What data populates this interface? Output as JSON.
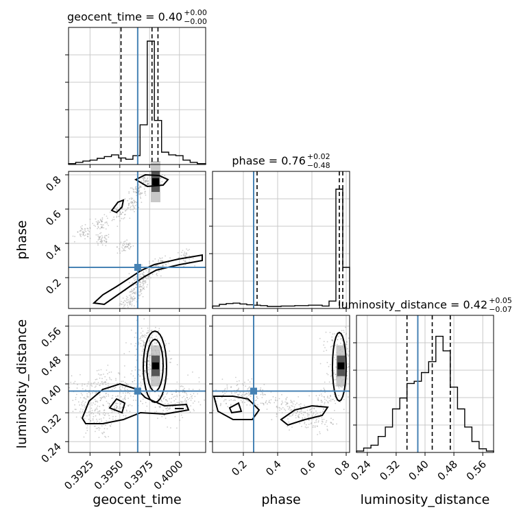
{
  "chart_data": {
    "type": "corner",
    "parameters": [
      "geocent_time",
      "phase",
      "luminosity_distance"
    ],
    "truths": {
      "geocent_time": 0.3965,
      "phase": 0.26,
      "luminosity_distance": 0.38
    },
    "colors": {
      "truth": "#4682b4",
      "grid": "#c8c8c8",
      "contour": "#000000",
      "points": "#9a9a9a",
      "density": "#555555"
    },
    "titles": [
      {
        "param": "geocent_time",
        "label": "geocent_time = 0.40",
        "sup": "+0.00",
        "sub": "−0.00"
      },
      {
        "param": "phase",
        "label": "phase = 0.76",
        "sup": "+0.02",
        "sub": "−0.48"
      },
      {
        "param": "luminosity_distance",
        "label": "luminosity_distance = 0.42",
        "sup": "+0.05",
        "sub": "−0.07"
      }
    ],
    "axes": {
      "geocent_time": {
        "range": [
          0.3907,
          0.4022
        ],
        "ticks": [
          0.3925,
          0.395,
          0.3975,
          0.4
        ],
        "tick_labels": [
          "0.3925",
          "0.3950",
          "0.3975",
          "0.4000"
        ]
      },
      "phase": {
        "range": [
          0.02,
          0.82
        ],
        "ticks": [
          0.2,
          0.4,
          0.6,
          0.8
        ],
        "tick_labels": [
          "0.2",
          "0.4",
          "0.6",
          "0.8"
        ]
      },
      "luminosity_distance": {
        "range": [
          0.21,
          0.59
        ],
        "ticks": [
          0.24,
          0.32,
          0.4,
          0.48,
          0.56
        ],
        "tick_labels": [
          "0.24",
          "0.32",
          "0.40",
          "0.48",
          "0.56"
        ]
      }
    },
    "histograms": {
      "geocent_time": {
        "edges": [
          0.3907,
          0.3913,
          0.3919,
          0.3925,
          0.3931,
          0.3937,
          0.3943,
          0.3949,
          0.3955,
          0.3961,
          0.3967,
          0.3973,
          0.3979,
          0.3985,
          0.3991,
          0.3997,
          0.4003,
          0.4009,
          0.4015,
          0.4022
        ],
        "counts": [
          2,
          5,
          8,
          10,
          14,
          18,
          22,
          15,
          12,
          20,
          90,
          280,
          100,
          28,
          22,
          20,
          10,
          5,
          2
        ],
        "quantiles": [
          0.3951,
          0.3977,
          0.3982
        ],
        "max": 280
      },
      "phase": {
        "edges": [
          0.02,
          0.06,
          0.1,
          0.14,
          0.18,
          0.22,
          0.26,
          0.3,
          0.34,
          0.38,
          0.42,
          0.46,
          0.5,
          0.54,
          0.58,
          0.62,
          0.66,
          0.7,
          0.74,
          0.78,
          0.82
        ],
        "counts": [
          6,
          10,
          12,
          13,
          11,
          9,
          8,
          7,
          5,
          5,
          6,
          6,
          7,
          7,
          8,
          8,
          6,
          18,
          290,
          100
        ],
        "quantiles": [
          0.28,
          0.76,
          0.78
        ],
        "max": 300
      },
      "luminosity_distance": {
        "edges": [
          0.21,
          0.23,
          0.25,
          0.27,
          0.29,
          0.31,
          0.33,
          0.35,
          0.37,
          0.39,
          0.41,
          0.43,
          0.45,
          0.47,
          0.49,
          0.51,
          0.53,
          0.55,
          0.57,
          0.59
        ],
        "counts": [
          2,
          6,
          10,
          22,
          35,
          60,
          75,
          95,
          98,
          110,
          125,
          160,
          140,
          90,
          60,
          35,
          15,
          5,
          2
        ],
        "quantiles": [
          0.35,
          0.42,
          0.47
        ],
        "max": 170
      }
    },
    "scatter": {
      "phase_vs_geocent_time": [
        [
          0.3957,
          0.05
        ],
        [
          0.3962,
          0.1
        ],
        [
          0.3966,
          0.15
        ],
        [
          0.397,
          0.2
        ],
        [
          0.3975,
          0.25
        ],
        [
          0.3985,
          0.28
        ],
        [
          0.4005,
          0.32
        ],
        [
          0.3955,
          0.38
        ],
        [
          0.3935,
          0.42
        ],
        [
          0.392,
          0.46
        ],
        [
          0.3935,
          0.52
        ],
        [
          0.395,
          0.58
        ],
        [
          0.396,
          0.63
        ],
        [
          0.3965,
          0.7
        ],
        [
          0.3972,
          0.76
        ],
        [
          0.398,
          0.78
        ]
      ],
      "luminosity_distance_vs_geocent_time": [
        [
          0.393,
          0.3
        ],
        [
          0.3945,
          0.34
        ],
        [
          0.396,
          0.38
        ],
        [
          0.3975,
          0.44
        ],
        [
          0.398,
          0.48
        ],
        [
          0.3972,
          0.52
        ],
        [
          0.399,
          0.34
        ],
        [
          0.4005,
          0.36
        ],
        [
          0.392,
          0.36
        ],
        [
          0.3935,
          0.4
        ]
      ],
      "luminosity_distance_vs_phase": [
        [
          0.1,
          0.36
        ],
        [
          0.2,
          0.38
        ],
        [
          0.3,
          0.36
        ],
        [
          0.45,
          0.34
        ],
        [
          0.55,
          0.31
        ],
        [
          0.7,
          0.36
        ],
        [
          0.76,
          0.42
        ],
        [
          0.79,
          0.48
        ],
        [
          0.77,
          0.52
        ],
        [
          0.62,
          0.3
        ]
      ]
    },
    "markers": [
      {
        "panel": "phase_vs_geocent_time",
        "x": 0.398,
        "y": 0.76
      },
      {
        "panel": "luminosity_distance_vs_geocent_time",
        "x": 0.398,
        "y": 0.45
      },
      {
        "panel": "luminosity_distance_vs_phase",
        "x": 0.77,
        "y": 0.45
      }
    ]
  }
}
